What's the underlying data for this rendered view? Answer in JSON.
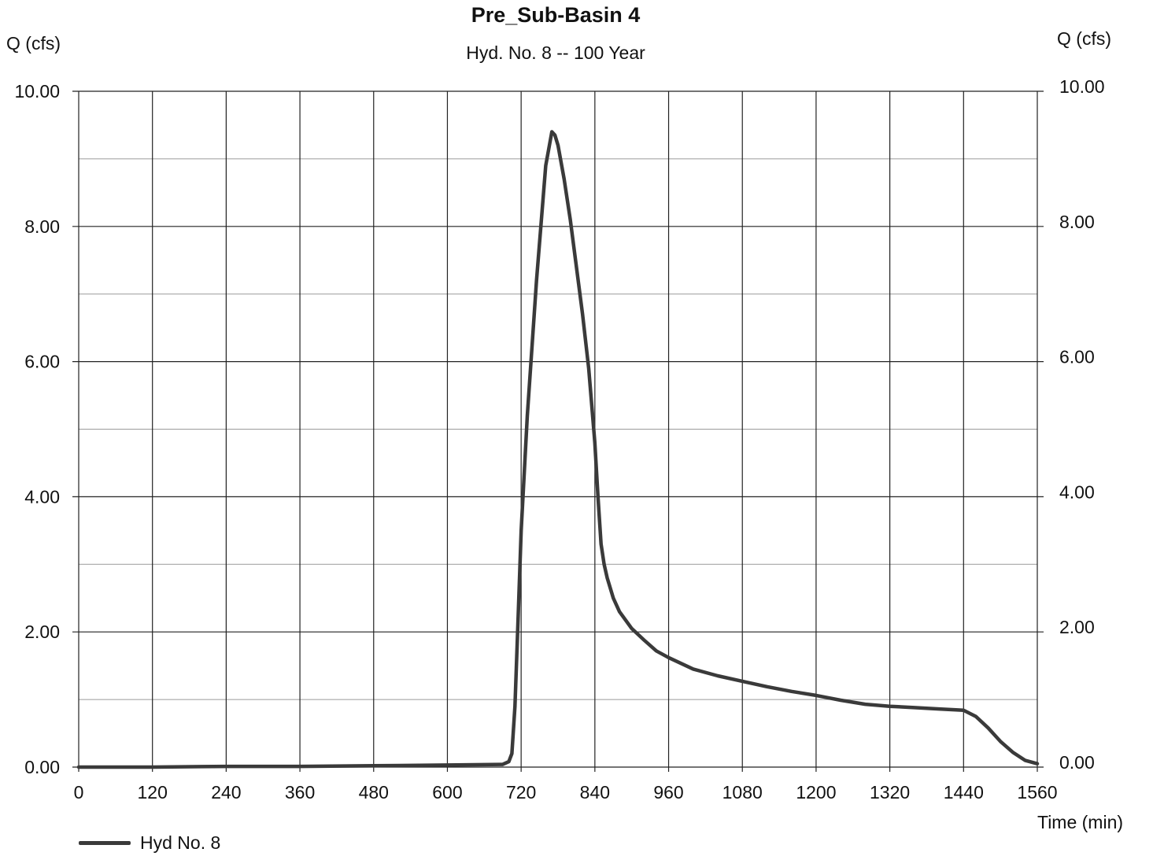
{
  "chart_data": {
    "type": "line",
    "title": "Pre_Sub-Basin 4",
    "subtitle": "Hyd. No. 8 -- 100 Year",
    "ylabel_left": "Q (cfs)",
    "ylabel_right": "Q (cfs)",
    "xlabel": "Time (min)",
    "xlim": [
      0,
      1560
    ],
    "ylim": [
      0,
      10
    ],
    "x_ticks": [
      0,
      120,
      240,
      360,
      480,
      600,
      720,
      840,
      960,
      1080,
      1200,
      1320,
      1440,
      1560
    ],
    "y_ticks": [
      "0.00",
      "2.00",
      "4.00",
      "6.00",
      "8.00",
      "10.00"
    ],
    "grid": true,
    "legend_position": "bottom-left",
    "series": [
      {
        "name": "Hyd No. 8",
        "color": "#3a3a3a",
        "x": [
          0,
          120,
          240,
          360,
          480,
          600,
          690,
          700,
          705,
          710,
          715,
          720,
          730,
          745,
          760,
          770,
          775,
          780,
          790,
          800,
          810,
          820,
          830,
          840,
          845,
          850,
          855,
          860,
          870,
          880,
          900,
          920,
          940,
          960,
          1000,
          1040,
          1080,
          1120,
          1160,
          1200,
          1240,
          1280,
          1320,
          1360,
          1400,
          1440,
          1460,
          1480,
          1500,
          1520,
          1540,
          1560
        ],
        "y": [
          0.0,
          0.0,
          0.01,
          0.01,
          0.02,
          0.03,
          0.04,
          0.08,
          0.2,
          0.9,
          2.2,
          3.5,
          5.2,
          7.2,
          8.9,
          9.4,
          9.35,
          9.2,
          8.7,
          8.1,
          7.4,
          6.7,
          5.9,
          4.8,
          4.0,
          3.3,
          3.0,
          2.8,
          2.5,
          2.3,
          2.05,
          1.88,
          1.72,
          1.62,
          1.45,
          1.35,
          1.27,
          1.19,
          1.12,
          1.06,
          0.99,
          0.93,
          0.9,
          0.88,
          0.86,
          0.84,
          0.75,
          0.58,
          0.38,
          0.22,
          0.1,
          0.05
        ]
      }
    ]
  }
}
